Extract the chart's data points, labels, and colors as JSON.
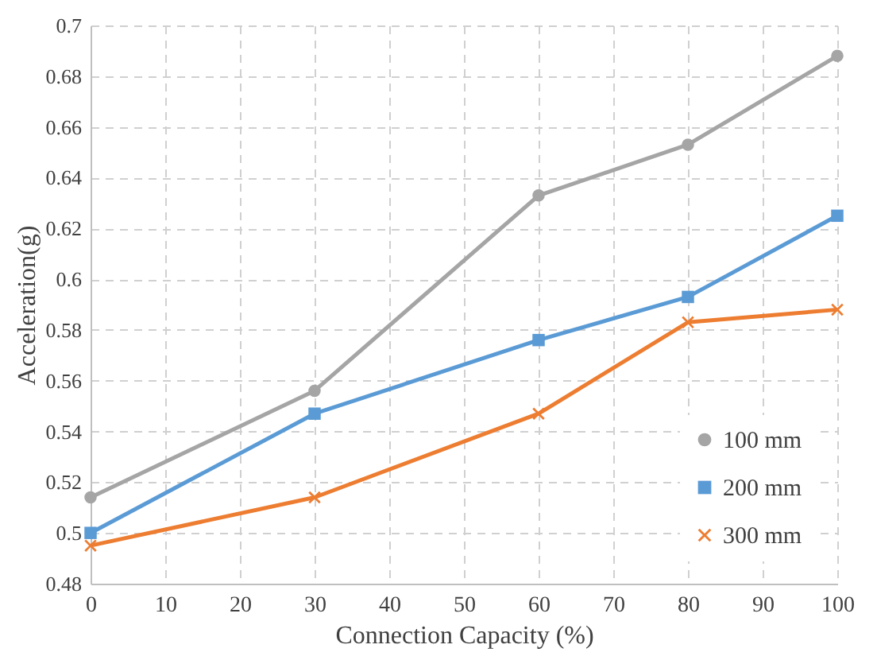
{
  "chart_data": {
    "type": "line",
    "xlabel": "Connection Capacity (%)",
    "ylabel": "Acceleration(g)",
    "x": [
      0,
      30,
      60,
      80,
      100
    ],
    "series": [
      {
        "name": "100 mm",
        "color": "#a5a5a5",
        "marker": "circle",
        "values": [
          0.514,
          0.556,
          0.633,
          0.653,
          0.688
        ]
      },
      {
        "name": "200 mm",
        "color": "#5b9bd5",
        "marker": "square",
        "values": [
          0.5,
          0.547,
          0.576,
          0.593,
          0.625
        ]
      },
      {
        "name": "300 mm",
        "color": "#ed7d31",
        "marker": "cross",
        "values": [
          0.495,
          0.514,
          0.547,
          0.583,
          0.588
        ]
      }
    ],
    "xlim": [
      0,
      100
    ],
    "xticks": [
      0,
      10,
      20,
      30,
      40,
      50,
      60,
      70,
      80,
      90,
      100
    ],
    "ylim": [
      0.48,
      0.7
    ],
    "yticks": [
      0.48,
      0.5,
      0.52,
      0.54,
      0.56,
      0.58,
      0.6,
      0.62,
      0.64,
      0.66,
      0.68,
      0.7
    ],
    "grid": true,
    "legend": "bottom right",
    "line_style": "solid"
  }
}
